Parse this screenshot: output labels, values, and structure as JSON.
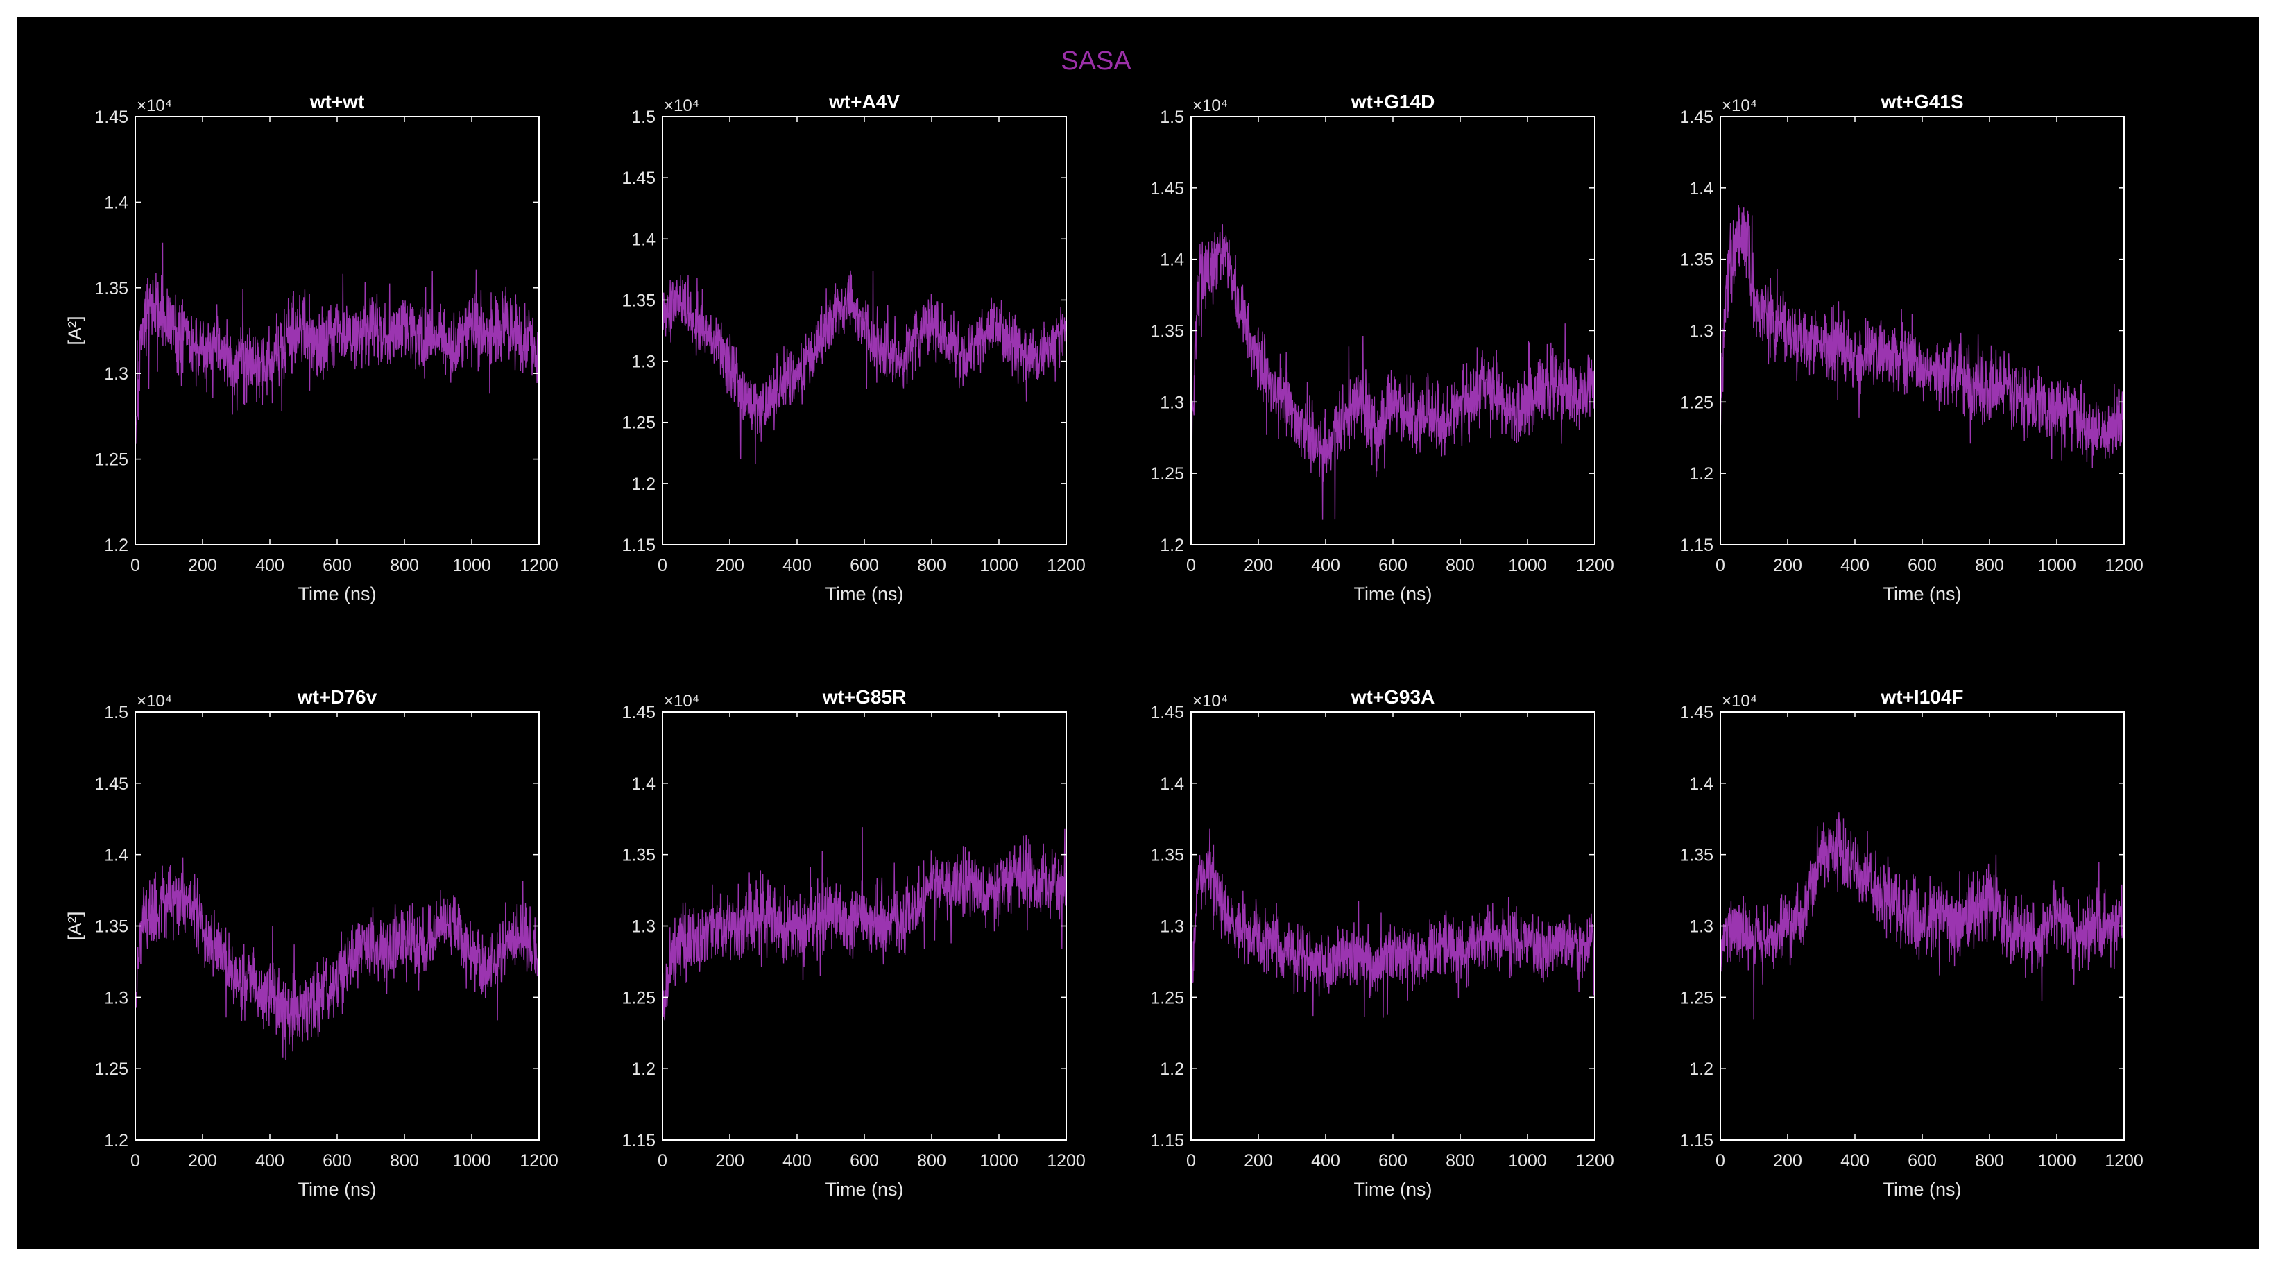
{
  "figure": {
    "suptitle": "SASA",
    "suptitle_color": "#9b30a8",
    "background": "#000000",
    "axis_color": "#ffffff",
    "line_color": "#9b35b0"
  },
  "chart_data": [
    {
      "type": "line",
      "title": "wt+wt",
      "xlabel": "Time (ns)",
      "ylabel": "[A²]",
      "exponent_label": "×10⁴",
      "xlim": [
        0,
        1200
      ],
      "ylim": [
        1.2,
        1.45
      ],
      "xticks": [
        "0",
        "200",
        "400",
        "600",
        "800",
        "1000",
        "1200"
      ],
      "yticks": [
        "1.2",
        "1.25",
        "1.3",
        "1.35",
        "1.4",
        "1.45"
      ],
      "series": [
        {
          "x": [
            0,
            20,
            50,
            100,
            150,
            200,
            250,
            300,
            350,
            400,
            450,
            500,
            550,
            600,
            650,
            700,
            750,
            800,
            850,
            900,
            950,
            1000,
            1050,
            1100,
            1150,
            1200
          ],
          "mean": [
            1.26,
            1.33,
            1.34,
            1.33,
            1.32,
            1.31,
            1.32,
            1.3,
            1.31,
            1.3,
            1.32,
            1.33,
            1.31,
            1.33,
            1.32,
            1.33,
            1.32,
            1.33,
            1.32,
            1.32,
            1.31,
            1.33,
            1.32,
            1.33,
            1.32,
            1.31
          ],
          "spread": 0.03
        }
      ]
    },
    {
      "type": "line",
      "title": "wt+A4V",
      "xlabel": "Time (ns)",
      "ylabel": "",
      "exponent_label": "×10⁴",
      "xlim": [
        0,
        1200
      ],
      "ylim": [
        1.15,
        1.5
      ],
      "xticks": [
        "0",
        "200",
        "400",
        "600",
        "800",
        "1000",
        "1200"
      ],
      "yticks": [
        "1.15",
        "1.2",
        "1.25",
        "1.3",
        "1.35",
        "1.4",
        "1.45",
        "1.5"
      ],
      "series": [
        {
          "x": [
            0,
            50,
            100,
            150,
            200,
            250,
            300,
            350,
            400,
            450,
            500,
            550,
            600,
            650,
            700,
            750,
            800,
            850,
            900,
            950,
            1000,
            1050,
            1100,
            1150,
            1200
          ],
          "mean": [
            1.34,
            1.35,
            1.33,
            1.32,
            1.3,
            1.27,
            1.26,
            1.28,
            1.29,
            1.31,
            1.33,
            1.35,
            1.33,
            1.31,
            1.3,
            1.32,
            1.33,
            1.32,
            1.3,
            1.32,
            1.33,
            1.31,
            1.3,
            1.31,
            1.33
          ],
          "spread": 0.035
        }
      ]
    },
    {
      "type": "line",
      "title": "wt+G14D",
      "xlabel": "Time (ns)",
      "ylabel": "",
      "exponent_label": "×10⁴",
      "xlim": [
        0,
        1200
      ],
      "ylim": [
        1.2,
        1.5
      ],
      "xticks": [
        "0",
        "200",
        "400",
        "600",
        "800",
        "1000",
        "1200"
      ],
      "yticks": [
        "1.2",
        "1.25",
        "1.3",
        "1.35",
        "1.4",
        "1.45",
        "1.5"
      ],
      "series": [
        {
          "x": [
            0,
            20,
            50,
            100,
            150,
            200,
            250,
            300,
            350,
            400,
            450,
            500,
            550,
            600,
            650,
            700,
            750,
            800,
            850,
            900,
            950,
            1000,
            1050,
            1100,
            1150,
            1200
          ],
          "mean": [
            1.26,
            1.38,
            1.39,
            1.41,
            1.36,
            1.33,
            1.31,
            1.29,
            1.28,
            1.26,
            1.29,
            1.3,
            1.28,
            1.3,
            1.29,
            1.29,
            1.28,
            1.3,
            1.31,
            1.31,
            1.29,
            1.3,
            1.31,
            1.31,
            1.3,
            1.31
          ],
          "spread": 0.035
        }
      ]
    },
    {
      "type": "line",
      "title": "wt+G41S",
      "xlabel": "Time (ns)",
      "ylabel": "",
      "exponent_label": "×10⁴",
      "xlim": [
        0,
        1200
      ],
      "ylim": [
        1.15,
        1.45
      ],
      "xticks": [
        "0",
        "200",
        "400",
        "600",
        "800",
        "1000",
        "1200"
      ],
      "yticks": [
        "1.15",
        "1.2",
        "1.25",
        "1.3",
        "1.35",
        "1.4",
        "1.45"
      ],
      "series": [
        {
          "x": [
            0,
            20,
            50,
            80,
            100,
            150,
            200,
            250,
            300,
            350,
            400,
            450,
            500,
            550,
            600,
            650,
            700,
            750,
            800,
            850,
            900,
            950,
            1000,
            1050,
            1100,
            1150,
            1200
          ],
          "mean": [
            1.24,
            1.34,
            1.36,
            1.37,
            1.32,
            1.31,
            1.3,
            1.29,
            1.29,
            1.29,
            1.28,
            1.29,
            1.28,
            1.28,
            1.27,
            1.27,
            1.27,
            1.26,
            1.26,
            1.26,
            1.25,
            1.25,
            1.24,
            1.24,
            1.23,
            1.23,
            1.24
          ],
          "spread": 0.035
        }
      ]
    },
    {
      "type": "line",
      "title": "wt+D76v",
      "xlabel": "Time (ns)",
      "ylabel": "[A²]",
      "exponent_label": "×10⁴",
      "xlim": [
        0,
        1200
      ],
      "ylim": [
        1.2,
        1.5
      ],
      "xticks": [
        "0",
        "200",
        "400",
        "600",
        "800",
        "1000",
        "1200"
      ],
      "yticks": [
        "1.2",
        "1.25",
        "1.3",
        "1.35",
        "1.4",
        "1.45",
        "1.5"
      ],
      "series": [
        {
          "x": [
            0,
            20,
            50,
            100,
            150,
            200,
            250,
            300,
            350,
            400,
            450,
            500,
            550,
            600,
            650,
            700,
            750,
            800,
            850,
            900,
            950,
            1000,
            1050,
            1100,
            1150,
            1200
          ],
          "mean": [
            1.3,
            1.36,
            1.36,
            1.37,
            1.37,
            1.35,
            1.33,
            1.32,
            1.31,
            1.3,
            1.29,
            1.29,
            1.3,
            1.31,
            1.33,
            1.34,
            1.33,
            1.34,
            1.33,
            1.35,
            1.35,
            1.33,
            1.32,
            1.34,
            1.34,
            1.33
          ],
          "spread": 0.035
        }
      ]
    },
    {
      "type": "line",
      "title": "wt+G85R",
      "xlabel": "Time (ns)",
      "ylabel": "",
      "exponent_label": "×10⁴",
      "xlim": [
        0,
        1200
      ],
      "ylim": [
        1.15,
        1.45
      ],
      "xticks": [
        "0",
        "200",
        "400",
        "600",
        "800",
        "1000",
        "1200"
      ],
      "yticks": [
        "1.15",
        "1.2",
        "1.25",
        "1.3",
        "1.35",
        "1.4",
        "1.45"
      ],
      "series": [
        {
          "x": [
            0,
            20,
            50,
            100,
            150,
            200,
            250,
            300,
            350,
            400,
            450,
            500,
            550,
            600,
            650,
            700,
            750,
            800,
            850,
            900,
            950,
            1000,
            1050,
            1100,
            1150,
            1200
          ],
          "mean": [
            1.24,
            1.27,
            1.29,
            1.29,
            1.3,
            1.3,
            1.3,
            1.31,
            1.3,
            1.3,
            1.3,
            1.31,
            1.3,
            1.31,
            1.3,
            1.3,
            1.31,
            1.33,
            1.33,
            1.33,
            1.32,
            1.33,
            1.34,
            1.33,
            1.33,
            1.33
          ],
          "spread": 0.035
        }
      ]
    },
    {
      "type": "line",
      "title": "wt+G93A",
      "xlabel": "Time (ns)",
      "ylabel": "",
      "exponent_label": "×10⁴",
      "xlim": [
        0,
        1200
      ],
      "ylim": [
        1.15,
        1.45
      ],
      "xticks": [
        "0",
        "200",
        "400",
        "600",
        "800",
        "1000",
        "1200"
      ],
      "yticks": [
        "1.15",
        "1.2",
        "1.25",
        "1.3",
        "1.35",
        "1.4",
        "1.45"
      ],
      "series": [
        {
          "x": [
            0,
            20,
            50,
            100,
            150,
            200,
            250,
            300,
            350,
            400,
            450,
            500,
            550,
            600,
            650,
            700,
            750,
            800,
            850,
            900,
            950,
            1000,
            1050,
            1100,
            1150,
            1200
          ],
          "mean": [
            1.25,
            1.33,
            1.34,
            1.31,
            1.3,
            1.29,
            1.29,
            1.28,
            1.28,
            1.27,
            1.28,
            1.28,
            1.27,
            1.28,
            1.28,
            1.28,
            1.29,
            1.28,
            1.29,
            1.29,
            1.29,
            1.29,
            1.28,
            1.29,
            1.29,
            1.29
          ],
          "spread": 0.03
        }
      ]
    },
    {
      "type": "line",
      "title": "wt+I104F",
      "xlabel": "Time (ns)",
      "ylabel": "",
      "exponent_label": "×10⁴",
      "xlim": [
        0,
        1200
      ],
      "ylim": [
        1.15,
        1.45
      ],
      "xticks": [
        "0",
        "200",
        "400",
        "600",
        "800",
        "1000",
        "1200"
      ],
      "yticks": [
        "1.15",
        "1.2",
        "1.25",
        "1.3",
        "1.35",
        "1.4",
        "1.45"
      ],
      "series": [
        {
          "x": [
            0,
            20,
            50,
            100,
            150,
            200,
            250,
            300,
            350,
            400,
            450,
            500,
            550,
            600,
            650,
            700,
            750,
            800,
            850,
            900,
            950,
            1000,
            1050,
            1100,
            1150,
            1200
          ],
          "mean": [
            1.28,
            1.3,
            1.3,
            1.29,
            1.29,
            1.3,
            1.31,
            1.35,
            1.35,
            1.34,
            1.33,
            1.32,
            1.31,
            1.3,
            1.31,
            1.3,
            1.31,
            1.32,
            1.3,
            1.29,
            1.29,
            1.31,
            1.29,
            1.3,
            1.3,
            1.3
          ],
          "spread": 0.035
        }
      ]
    }
  ]
}
